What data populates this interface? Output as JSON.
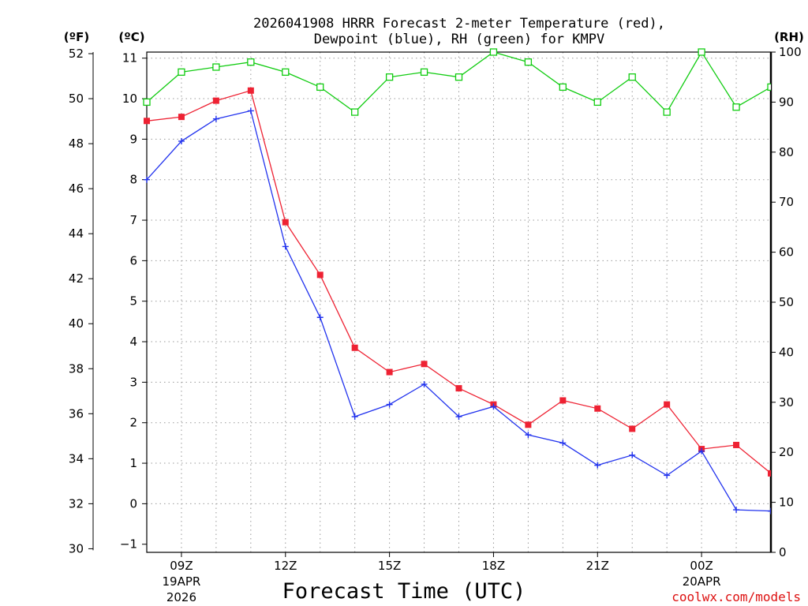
{
  "chart_data": {
    "type": "line",
    "title_line1": "2026041908 HRRR Forecast 2-meter Temperature (red),",
    "title_line2": "Dewpoint (blue), RH (green) for KMPV",
    "left_outer_unit": "(ºF)",
    "left_inner_unit": "(ºC)",
    "right_unit": "(RH)",
    "xlabel": "Forecast Time (UTC)",
    "credit": "coolwx.com/models",
    "celsius_range": [
      -1.2,
      11.15
    ],
    "rh_range": [
      0,
      100
    ],
    "fahrenheit_ticks": [
      "30",
      "32",
      "34",
      "36",
      "38",
      "40",
      "42",
      "44",
      "46",
      "48",
      "50",
      "52"
    ],
    "celsius_ticks": [
      "−1",
      "0",
      "1",
      "2",
      "3",
      "4",
      "5",
      "6",
      "7",
      "8",
      "9",
      "10",
      "11"
    ],
    "rh_ticks": [
      "0",
      "10",
      "20",
      "30",
      "40",
      "50",
      "60",
      "70",
      "80",
      "90",
      "100"
    ],
    "x_hours": [
      8,
      9,
      10,
      11,
      12,
      13,
      14,
      15,
      16,
      17,
      18,
      19,
      20,
      21,
      22,
      23,
      24,
      25,
      26
    ],
    "x_ticks": [
      {
        "hour": 9,
        "label": "09Z",
        "date": "19APR",
        "year": "2026"
      },
      {
        "hour": 12,
        "label": "12Z"
      },
      {
        "hour": 15,
        "label": "15Z"
      },
      {
        "hour": 18,
        "label": "18Z"
      },
      {
        "hour": 21,
        "label": "21Z"
      },
      {
        "hour": 24,
        "label": "00Z",
        "date": "20APR"
      }
    ],
    "series": [
      {
        "name": "Temperature",
        "unit": "C",
        "color": "#ee2233",
        "marker": "filled-square",
        "values": [
          9.45,
          9.55,
          9.95,
          10.2,
          6.95,
          5.65,
          3.85,
          3.25,
          3.45,
          2.85,
          2.45,
          1.95,
          2.55,
          2.35,
          1.85,
          2.45,
          1.35,
          1.45,
          0.75
        ]
      },
      {
        "name": "Dewpoint",
        "unit": "C",
        "color": "#2233ee",
        "marker": "plus",
        "values": [
          8.0,
          8.95,
          9.5,
          9.7,
          6.35,
          4.6,
          2.15,
          2.45,
          2.95,
          2.15,
          2.4,
          1.7,
          1.5,
          0.95,
          1.2,
          0.7,
          1.3,
          -0.15,
          -0.18
        ]
      },
      {
        "name": "RH",
        "unit": "%",
        "color": "#11cc11",
        "marker": "open-square",
        "values": [
          90,
          96,
          97,
          98,
          96,
          93,
          88,
          95,
          96,
          95,
          100,
          98,
          93,
          90,
          95,
          88,
          100,
          89,
          93
        ]
      }
    ]
  }
}
